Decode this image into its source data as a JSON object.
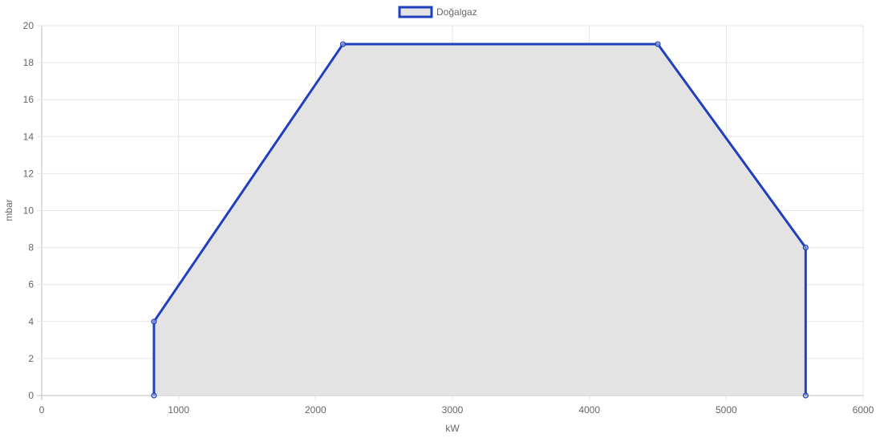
{
  "chart_data": {
    "type": "area",
    "xlabel": "kW",
    "ylabel": "mbar",
    "xlim": [
      0,
      6000
    ],
    "ylim": [
      0,
      20
    ],
    "x_ticks": [
      0,
      1000,
      2000,
      3000,
      4000,
      5000,
      6000
    ],
    "y_ticks": [
      0,
      2,
      4,
      6,
      8,
      10,
      12,
      14,
      16,
      18,
      20
    ],
    "grid": true,
    "legend_position": "top-center",
    "series": [
      {
        "name": "Doğalgaz",
        "color": "#1f3fbf",
        "fill": "#e3e3e4",
        "points": [
          {
            "x": 820,
            "y": 0
          },
          {
            "x": 820,
            "y": 4
          },
          {
            "x": 2200,
            "y": 19
          },
          {
            "x": 4500,
            "y": 19
          },
          {
            "x": 5580,
            "y": 8
          },
          {
            "x": 5580,
            "y": 0
          }
        ]
      }
    ]
  }
}
